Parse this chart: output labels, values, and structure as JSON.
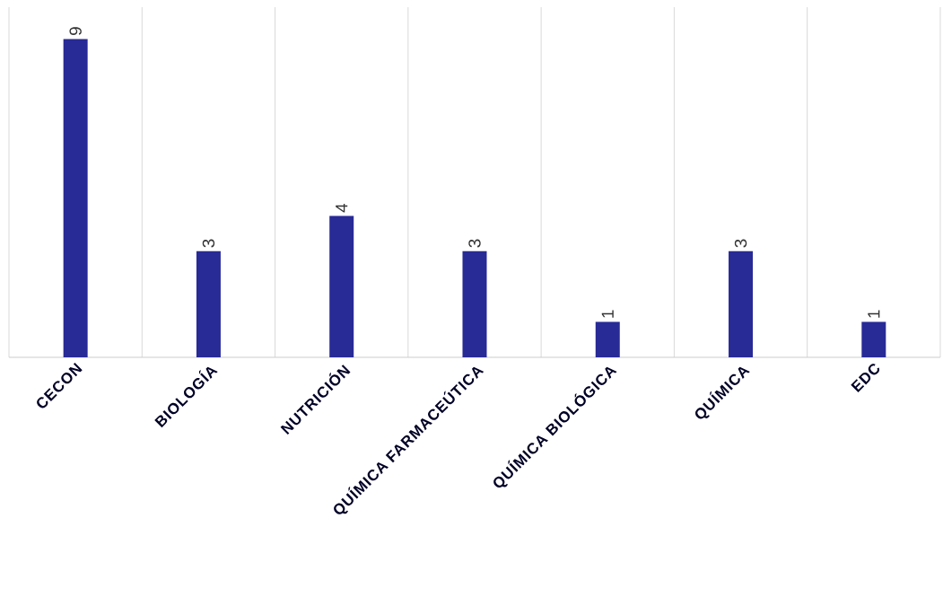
{
  "chart_data": {
    "type": "bar",
    "categories": [
      "CECON",
      "BIOLOGÍA",
      "NUTRICIÓN",
      "QUÍMICA FARMACEÚTICA",
      "QUÍMICA BIOLÓGICA",
      "QUÍMICA",
      "EDC"
    ],
    "values": [
      9,
      3,
      4,
      3,
      1,
      3,
      1
    ],
    "color": "#282a96",
    "data_labels": true,
    "grid": "x"
  }
}
